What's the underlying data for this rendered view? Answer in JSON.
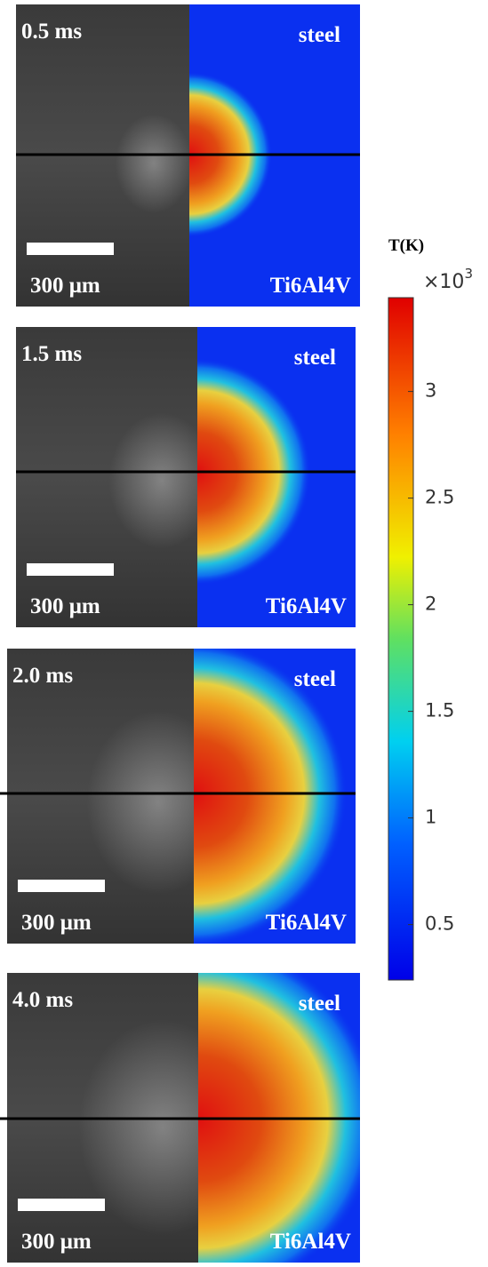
{
  "panels": [
    {
      "time": "0.5 ms",
      "top_material": "steel",
      "bottom_material": "Ti6Al4V",
      "scale": "300 μm"
    },
    {
      "time": "1.5 ms",
      "top_material": "steel",
      "bottom_material": "Ti6Al4V",
      "scale": "300 μm"
    },
    {
      "time": "2.0 ms",
      "top_material": "steel",
      "bottom_material": "Ti6Al4V",
      "scale": "300 μm"
    },
    {
      "time": "4.0 ms",
      "top_material": "steel",
      "bottom_material": "Ti6Al4V",
      "scale": "300 μm"
    }
  ],
  "colorbar": {
    "title": "T(K)",
    "multiplier": "×10",
    "multiplier_exponent": "3",
    "range": [
      0.24,
      3.44
    ],
    "ticks": [
      0.5,
      1,
      1.5,
      2,
      2.5,
      3
    ]
  }
}
